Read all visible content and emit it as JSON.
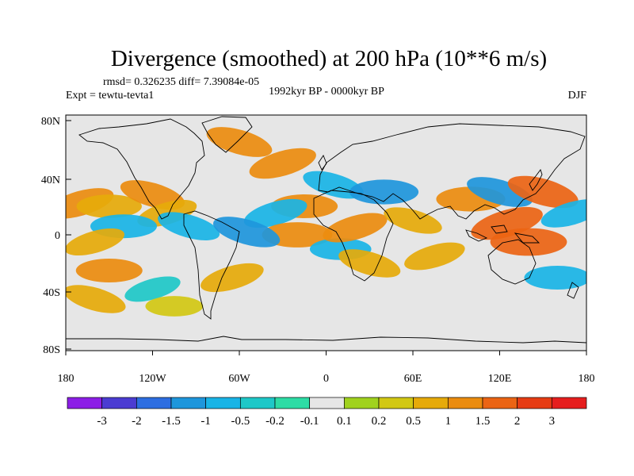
{
  "title": "Divergence (smoothed) at 200 hPa (10**6 m/s)",
  "stats": "rmsd= 0.326235 diff= 7.39084e-05",
  "experiment": "Expt = tewtu-tevta1",
  "period": "1992kyr BP - 0000kyr BP",
  "season": "DJF",
  "lat_ticks": [
    "80N",
    "40N",
    "0",
    "40S",
    "80S"
  ],
  "lon_ticks": [
    "180",
    "120W",
    "60W",
    "0",
    "60E",
    "120E",
    "180"
  ],
  "colorbar": {
    "labels": [
      "-3",
      "-2",
      "-1.5",
      "-1",
      "-0.5",
      "-0.2",
      "-0.1",
      "0.1",
      "0.2",
      "0.5",
      "1",
      "1.5",
      "2",
      "3"
    ],
    "colors": [
      "#8c1ee6",
      "#4b3cd2",
      "#2d6ee1",
      "#1e96dc",
      "#19b4e6",
      "#1ec8c8",
      "#2ddca5",
      "#e6e6e6",
      "#a0d21e",
      "#d2c814",
      "#e6aa0a",
      "#eb8c0f",
      "#eb6414",
      "#e63c14",
      "#e61e1e"
    ]
  },
  "chart_data": {
    "type": "heatmap",
    "title": "Divergence (smoothed) at 200 hPa (10**6 m/s)",
    "xlabel": "",
    "ylabel": "",
    "xlim": [
      -180,
      180
    ],
    "ylim": [
      -90,
      90
    ],
    "levels": [
      -3,
      -2,
      -1.5,
      -1,
      -0.5,
      -0.2,
      -0.1,
      0.1,
      0.2,
      0.5,
      1,
      1.5,
      2,
      3
    ],
    "lat_ticks_deg": [
      80,
      40,
      0,
      -40,
      -80
    ],
    "lon_ticks_deg": [
      -180,
      -120,
      -60,
      0,
      60,
      120,
      180
    ],
    "regions": [
      {
        "lon": -170,
        "lat": 22,
        "value": 1.2
      },
      {
        "lon": -150,
        "lat": 20,
        "value": 0.9
      },
      {
        "lon": -120,
        "lat": 28,
        "value": 1.0
      },
      {
        "lon": -110,
        "lat": 15,
        "value": 0.6
      },
      {
        "lon": -140,
        "lat": 6,
        "value": -1.0
      },
      {
        "lon": -95,
        "lat": 6,
        "value": -0.8
      },
      {
        "lon": -160,
        "lat": -5,
        "value": 0.6
      },
      {
        "lon": -150,
        "lat": -25,
        "value": 1.0
      },
      {
        "lon": -160,
        "lat": -45,
        "value": 0.8
      },
      {
        "lon": -120,
        "lat": -38,
        "value": -0.3
      },
      {
        "lon": -105,
        "lat": -50,
        "value": 0.3
      },
      {
        "lon": -60,
        "lat": 65,
        "value": 1.1
      },
      {
        "lon": -30,
        "lat": 50,
        "value": 1.2
      },
      {
        "lon": -15,
        "lat": 20,
        "value": 1.0
      },
      {
        "lon": 5,
        "lat": 35,
        "value": -0.7
      },
      {
        "lon": -35,
        "lat": 15,
        "value": -0.9
      },
      {
        "lon": -20,
        "lat": 0,
        "value": 1.3
      },
      {
        "lon": -55,
        "lat": 2,
        "value": -1.2
      },
      {
        "lon": -65,
        "lat": -30,
        "value": 0.9
      },
      {
        "lon": 10,
        "lat": -10,
        "value": -0.6
      },
      {
        "lon": 30,
        "lat": -20,
        "value": 0.8
      },
      {
        "lon": 20,
        "lat": 5,
        "value": 1.0
      },
      {
        "lon": 40,
        "lat": 30,
        "value": -1.2
      },
      {
        "lon": 60,
        "lat": 10,
        "value": 0.5
      },
      {
        "lon": 75,
        "lat": -15,
        "value": 0.7
      },
      {
        "lon": 100,
        "lat": 25,
        "value": 1.2
      },
      {
        "lon": 120,
        "lat": 30,
        "value": -1.1
      },
      {
        "lon": 125,
        "lat": 8,
        "value": 1.6
      },
      {
        "lon": 140,
        "lat": -5,
        "value": 1.8
      },
      {
        "lon": 150,
        "lat": 30,
        "value": 1.5
      },
      {
        "lon": 170,
        "lat": 15,
        "value": -0.8
      },
      {
        "lon": 160,
        "lat": -30,
        "value": -1.0
      }
    ]
  }
}
